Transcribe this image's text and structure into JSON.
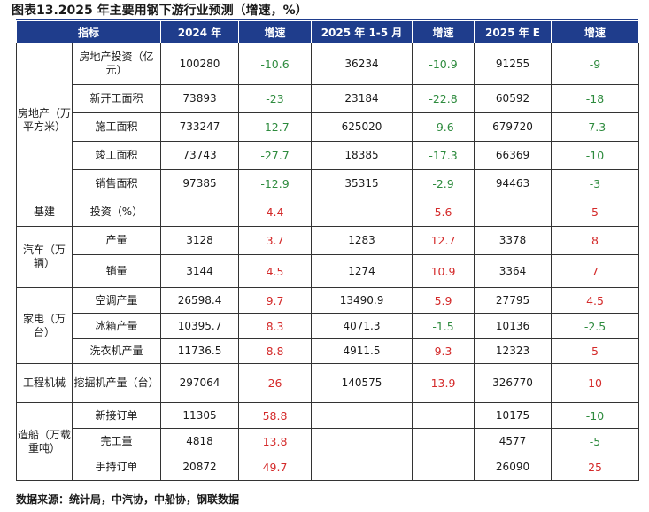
{
  "title": "图表13.2025 年主要用钢下游行业预测（增速，%）",
  "header": [
    "指标",
    "2024 年",
    "增速",
    "2025 年 1-5 月",
    "增速",
    "2025 年 E",
    "增速"
  ],
  "groups": [
    {
      "category": "房地产（万平方米）",
      "rows": [
        {
          "indicator": "房地产投资（亿元）",
          "v2024": "100280",
          "g2024": "-10.6",
          "v2025m": "36234",
          "g2025m": "-10.9",
          "v2025e": "91255",
          "g2025e": "-9"
        },
        {
          "indicator": "新开工面积",
          "v2024": "73893",
          "g2024": "-23",
          "v2025m": "23184",
          "g2025m": "-22.8",
          "v2025e": "60592",
          "g2025e": "-18"
        },
        {
          "indicator": "施工面积",
          "v2024": "733247",
          "g2024": "-12.7",
          "v2025m": "625020",
          "g2025m": "-9.6",
          "v2025e": "679720",
          "g2025e": "-7.3"
        },
        {
          "indicator": "竣工面积",
          "v2024": "73743",
          "g2024": "-27.7",
          "v2025m": "18385",
          "g2025m": "-17.3",
          "v2025e": "66369",
          "g2025e": "-10"
        },
        {
          "indicator": "销售面积",
          "v2024": "97385",
          "g2024": "-12.9",
          "v2025m": "35315",
          "g2025m": "-2.9",
          "v2025e": "94463",
          "g2025e": "-3"
        }
      ]
    },
    {
      "category": "基建",
      "rows": [
        {
          "indicator": "投资（%）",
          "v2024": "",
          "g2024": "4.4",
          "v2025m": "",
          "g2025m": "5.6",
          "v2025e": "",
          "g2025e": "5"
        }
      ]
    },
    {
      "category": "汽车（万辆）",
      "rows": [
        {
          "indicator": "产量",
          "v2024": "3128",
          "g2024": "3.7",
          "v2025m": "1283",
          "g2025m": "12.7",
          "v2025e": "3378",
          "g2025e": "8"
        },
        {
          "indicator": "销量",
          "v2024": "3144",
          "g2024": "4.5",
          "v2025m": "1274",
          "g2025m": "10.9",
          "v2025e": "3364",
          "g2025e": "7"
        }
      ]
    },
    {
      "category": "家电（万台）",
      "rows": [
        {
          "indicator": "空调产量",
          "v2024": "26598.4",
          "g2024": "9.7",
          "v2025m": "13490.9",
          "g2025m": "5.9",
          "v2025e": "27795",
          "g2025e": "4.5"
        },
        {
          "indicator": "冰箱产量",
          "v2024": "10395.7",
          "g2024": "8.3",
          "v2025m": "4071.3",
          "g2025m": "-1.5",
          "v2025e": "10136",
          "g2025e": "-2.5"
        },
        {
          "indicator": "洗衣机产量",
          "v2024": "11736.5",
          "g2024": "8.8",
          "v2025m": "4911.5",
          "g2025m": "9.3",
          "v2025e": "12323",
          "g2025e": "5"
        }
      ]
    },
    {
      "category": "工程机械",
      "rows": [
        {
          "indicator": "挖掘机产量（台）",
          "v2024": "297064",
          "g2024": "26",
          "v2025m": "140575",
          "g2025m": "13.9",
          "v2025e": "326770",
          "g2025e": "10"
        }
      ]
    },
    {
      "category": "造船（万载重吨）",
      "rows": [
        {
          "indicator": "新接订单",
          "v2024": "11305",
          "g2024": "58.8",
          "v2025m": "",
          "g2025m": "",
          "v2025e": "10175",
          "g2025e": "-10"
        },
        {
          "indicator": "完工量",
          "v2024": "4818",
          "g2024": "13.8",
          "v2025m": "",
          "g2025m": "",
          "v2025e": "4577",
          "g2025e": "-5"
        },
        {
          "indicator": "手持订单",
          "v2024": "20872",
          "g2024": "49.7",
          "v2025m": "",
          "g2025m": "",
          "v2025e": "26090",
          "g2025e": "25"
        }
      ]
    }
  ],
  "source": "数据来源：统计局，中汽协，中船协，钢联数据",
  "colors": {
    "header_bg": "#1f3d8c",
    "negative": "#2e8b3e",
    "positive": "#d42a2a"
  }
}
